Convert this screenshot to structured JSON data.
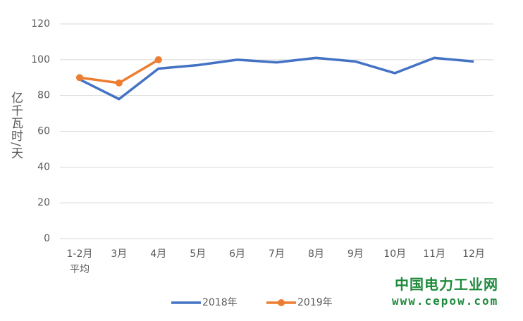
{
  "chart_data": {
    "type": "line",
    "ylabel": "亿千瓦时/天",
    "categories": [
      "1-2月\n平均",
      "3月",
      "4月",
      "5月",
      "6月",
      "7月",
      "8月",
      "9月",
      "10月",
      "11月",
      "12月"
    ],
    "series": [
      {
        "name": "2018年",
        "color": "#4472c4",
        "marker": false,
        "values": [
          89,
          78,
          95,
          97,
          100,
          98.5,
          101,
          99,
          92.5,
          101,
          99
        ]
      },
      {
        "name": "2019年",
        "color": "#ed7d31",
        "marker": true,
        "values": [
          90,
          87,
          100,
          null,
          null,
          null,
          null,
          null,
          null,
          null,
          null
        ]
      }
    ],
    "ylim": [
      0,
      120
    ],
    "yticks": [
      0,
      20,
      40,
      60,
      80,
      100,
      120
    ],
    "grid": true,
    "legend": "bottom",
    "annotations": [
      "中国电力工业网",
      "www.cepow.com"
    ]
  }
}
